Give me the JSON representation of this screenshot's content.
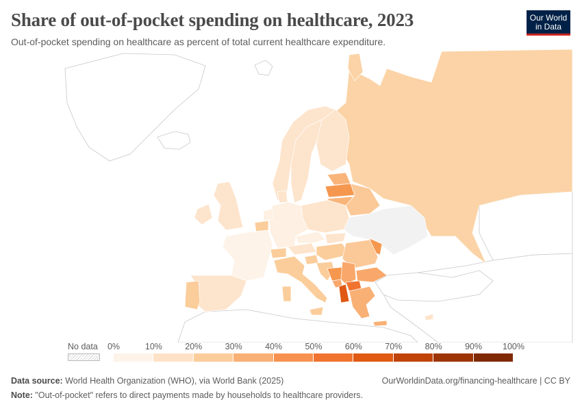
{
  "header": {
    "title": "Share of out-of-pocket spending on healthcare, 2023",
    "subtitle": "Out-of-pocket spending on healthcare as percent of total current healthcare expenditure."
  },
  "logo": {
    "line1": "Our World",
    "line2": "in Data"
  },
  "legend": {
    "no_data_label": "No data",
    "ticks": [
      "0%",
      "10%",
      "20%",
      "30%",
      "40%",
      "50%",
      "60%",
      "70%",
      "80%",
      "90%",
      "100%"
    ],
    "colors": [
      "#fef3e8",
      "#fde2c7",
      "#fbcd9b",
      "#f9b075",
      "#f6914f",
      "#f07430",
      "#e05a14",
      "#c0440a",
      "#9d3406",
      "#7f2a05"
    ]
  },
  "map_data": {
    "type": "choropleth",
    "unit": "%",
    "region": "Europe",
    "year": 2023,
    "no_data_color": "#f2f2f2",
    "non_included_color": "#ffffff"
  },
  "footer": {
    "source_label": "Data source:",
    "source_text": " World Health Organization (WHO), via World Bank (2025)",
    "url": "OurWorldinData.org/financing-healthcare | CC BY",
    "note_label": "Note:",
    "note_text": " \"Out-of-pocket\" refers to direct payments made by households to healthcare providers."
  }
}
